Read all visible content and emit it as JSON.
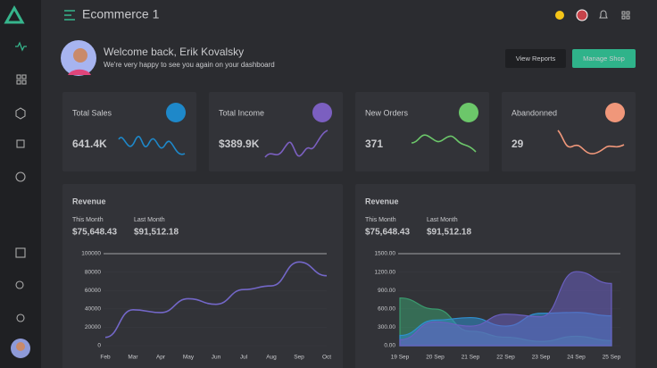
{
  "header": {
    "title": "Ecommerce 1"
  },
  "welcome": {
    "title": "Welcome back, Erik Kovalsky",
    "subtitle": "We're very happy to see you again on your dashboard",
    "buttons": [
      "View Reports",
      "Manage Shop"
    ]
  },
  "stats": [
    {
      "label": "Total Sales",
      "value": "641.4K",
      "color": "#1e88c9"
    },
    {
      "label": "Total Income",
      "value": "$389.9K",
      "color": "#7b5fc0"
    },
    {
      "label": "New Orders",
      "value": "371",
      "color": "#6cc76a"
    },
    {
      "label": "Abandonned",
      "value": "29",
      "color": "#f0977a"
    }
  ],
  "revenue_cards": [
    {
      "this_month_label": "This Month",
      "this_month": "$75,648.43",
      "last_month_label": "Last Month",
      "last_month": "$91,512.18"
    },
    {
      "this_month_label": "This Month",
      "this_month": "$75,648.43",
      "last_month_label": "Last Month",
      "last_month": "$91,512.18"
    }
  ],
  "chart_data": [
    {
      "type": "line",
      "title": "Revenue",
      "categories": [
        "Feb",
        "Mar",
        "Apr",
        "May",
        "Jun",
        "Jul",
        "Aug",
        "Sep",
        "Oct"
      ],
      "values": [
        9000,
        39000,
        36000,
        51000,
        45000,
        61000,
        65000,
        91000,
        76000
      ],
      "color": "#7367c8",
      "ylim": [
        0,
        100000
      ],
      "yticks": [
        0,
        20000,
        40000,
        60000,
        80000,
        100000
      ],
      "grid": true
    },
    {
      "type": "area",
      "title": "Revenue",
      "categories": [
        "19 Sep",
        "20 Sep",
        "21 Sep",
        "22 Sep",
        "23 Sep",
        "24 Sep",
        "25 Sep"
      ],
      "series": [
        {
          "color": "#3a9a6e",
          "values": [
            778,
            597,
            236,
            139,
            69,
            153,
            83
          ]
        },
        {
          "color": "#2f8fd0",
          "values": [
            167,
            417,
            458,
            319,
            528,
            542,
            486
          ]
        },
        {
          "color": "#6a5fbf",
          "values": [
            97,
            389,
            319,
            514,
            472,
            1208,
            1014
          ]
        }
      ],
      "ylim": [
        0,
        1500
      ],
      "yticks": [
        {
          "value": 0,
          "label": "0.00"
        },
        {
          "value": 300,
          "label": "300.00"
        },
        {
          "value": 600,
          "label": "600.00"
        },
        {
          "value": 900,
          "label": "900.00"
        },
        {
          "value": 1200,
          "label": "1200.00"
        },
        {
          "value": 1500,
          "label": "1500.00"
        }
      ],
      "grid": true
    }
  ]
}
